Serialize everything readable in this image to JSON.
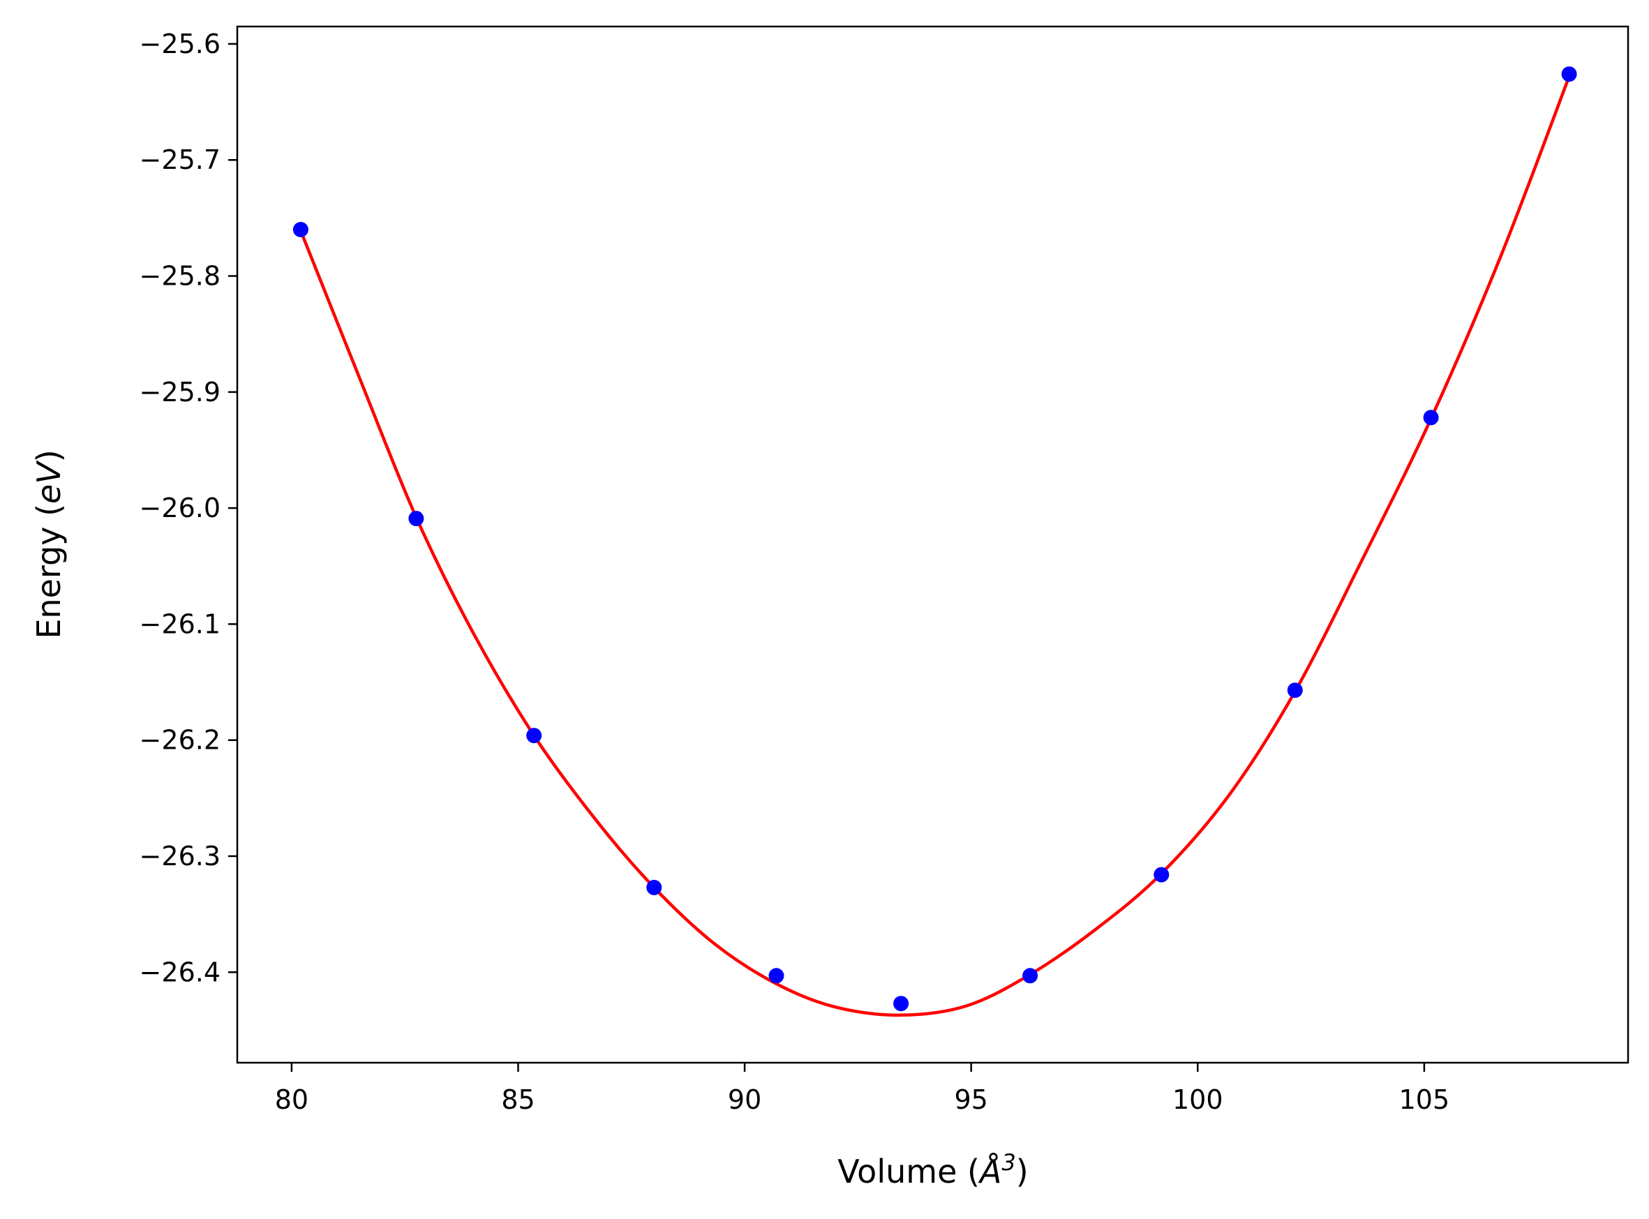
{
  "chart_data": {
    "type": "scatter",
    "title": "",
    "xlabel": "Volume (",
    "xlabel_symbol": "Å",
    "xlabel_exp": "3",
    "xlabel_close": ")",
    "ylabel": "Energy (",
    "ylabel_unit": "eV",
    "ylabel_close": ")",
    "xlim": [
      78.8,
      109.5
    ],
    "ylim": [
      -26.478,
      -25.585
    ],
    "x_ticks": [
      80,
      85,
      90,
      95,
      100,
      105
    ],
    "y_ticks": [
      -25.6,
      -25.7,
      -25.8,
      -25.9,
      -26.0,
      -26.1,
      -26.2,
      -26.3,
      -26.4
    ],
    "x_tick_labels": [
      "80",
      "85",
      "90",
      "95",
      "100",
      "105"
    ],
    "y_tick_labels": [
      "−25.6",
      "−25.7",
      "−25.8",
      "−25.9",
      "−26.0",
      "−26.1",
      "−26.2",
      "−26.3",
      "−26.4"
    ],
    "grid": false,
    "legend": "none",
    "series": [
      {
        "kind": "points",
        "color": "#0000ff",
        "x": [
          80.2,
          82.75,
          85.35,
          88.0,
          90.7,
          93.45,
          96.3,
          99.2,
          102.15,
          105.15,
          108.2
        ],
        "y": [
          -25.76,
          -26.009,
          -26.196,
          -26.327,
          -26.403,
          -26.427,
          -26.403,
          -26.316,
          -26.157,
          -25.922,
          -25.626
        ]
      },
      {
        "kind": "fit-curve",
        "color": "#ff0000",
        "x": [
          80.2,
          81.5,
          82.75,
          84.0,
          85.35,
          86.7,
          88.0,
          89.35,
          90.7,
          92.0,
          93.45,
          94.9,
          96.3,
          97.75,
          99.2,
          100.7,
          102.15,
          103.6,
          105.15,
          106.7,
          108.2
        ],
        "y": [
          -25.761,
          -25.888,
          -26.008,
          -26.107,
          -26.196,
          -26.268,
          -26.327,
          -26.376,
          -26.41,
          -26.43,
          -26.437,
          -26.429,
          -26.402,
          -26.363,
          -26.315,
          -26.247,
          -26.158,
          -26.047,
          -25.923,
          -25.782,
          -25.628
        ]
      }
    ]
  }
}
